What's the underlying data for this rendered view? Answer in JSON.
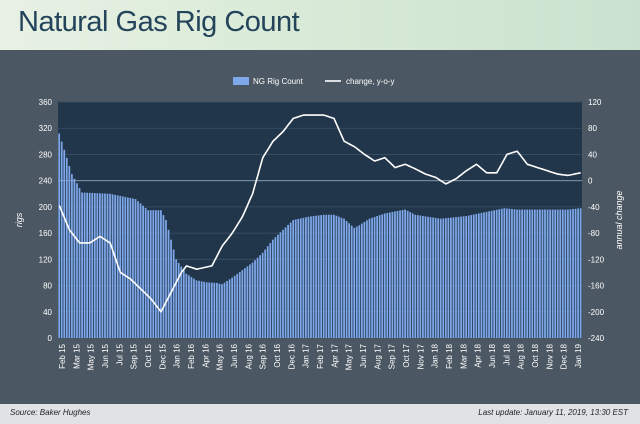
{
  "header": {
    "title": "Natural Gas Rig Count"
  },
  "footer": {
    "source": "Source: Baker Hughes",
    "last_update": "Last update: January 11, 2019, 13:30 EST"
  },
  "colors": {
    "bar": "#7fa8ea",
    "line": "#ffffff",
    "plot_bg": "#22364b",
    "panel_bg": "#4b5762"
  },
  "chart_data": {
    "type": "bar",
    "title": "",
    "left_axis_label": "rigs",
    "right_axis_label": "annual change",
    "ylim_left": [
      0,
      360
    ],
    "ylim_right": [
      -240,
      120
    ],
    "yticks_left": [
      "0",
      "40",
      "80",
      "120",
      "160",
      "200",
      "240",
      "280",
      "320",
      "360"
    ],
    "yticks_right": [
      "-240",
      "-200",
      "-160",
      "-120",
      "-80",
      "-40",
      "0",
      "40",
      "80",
      "120"
    ],
    "x_tick_labels": [
      "Feb 15",
      "Mar 15",
      "May 15",
      "Jun 15",
      "Jul 15",
      "Sep 15",
      "Oct 15",
      "Dec 15",
      "Jan 16",
      "Feb 16",
      "Apr 16",
      "May 16",
      "Jun 16",
      "Aug 16",
      "Sep 16",
      "Oct 16",
      "Dec 16",
      "Jan 17",
      "Feb 17",
      "Apr 17",
      "May 17",
      "Jun 17",
      "Aug 17",
      "Sep 17",
      "Oct 17",
      "Nov 17",
      "Jan 18",
      "Feb 18",
      "Mar 18",
      "Apr 18",
      "Jun 18",
      "Jul 18",
      "Aug 18",
      "Oct 18",
      "Nov 18",
      "Dec 18",
      "Jan 19"
    ],
    "legend": {
      "position": "top-center",
      "entries": [
        {
          "name": "NG Rig Count",
          "type": "bar"
        },
        {
          "name": "change, y-o-y",
          "type": "line"
        }
      ]
    },
    "grid": {
      "horizontal": true
    },
    "series": [
      {
        "name": "NG Rig Count",
        "axis": "left",
        "type": "bar",
        "anchors_index": [
          0,
          5,
          9,
          20,
          30,
          35,
          40,
          42,
          46,
          50,
          54,
          58,
          62,
          64,
          68,
          76,
          80,
          84,
          88,
          92,
          98,
          104,
          108,
          112,
          116,
          118,
          122,
          128,
          136,
          140,
          150,
          160,
          170,
          175,
          180,
          185,
          190,
          200,
          205
        ],
        "anchors_value": [
          312,
          250,
          222,
          220,
          212,
          195,
          195,
          180,
          120,
          98,
          88,
          85,
          84,
          82,
          92,
          115,
          130,
          150,
          165,
          180,
          185,
          188,
          188,
          182,
          168,
          172,
          182,
          190,
          196,
          188,
          182,
          186,
          194,
          198,
          196,
          196,
          196,
          196,
          198
        ]
      },
      {
        "name": "change, y-o-y",
        "axis": "right",
        "type": "line",
        "anchors_index": [
          0,
          4,
          8,
          12,
          16,
          20,
          24,
          28,
          32,
          36,
          40,
          44,
          48,
          50,
          54,
          60,
          64,
          68,
          72,
          76,
          80,
          84,
          88,
          92,
          96,
          100,
          104,
          108,
          112,
          116,
          120,
          124,
          128,
          132,
          136,
          140,
          144,
          148,
          152,
          156,
          160,
          164,
          168,
          172,
          176,
          180,
          184,
          188,
          192,
          196,
          200,
          205
        ],
        "anchors_value": [
          -38,
          -75,
          -95,
          -95,
          -85,
          -95,
          -140,
          -150,
          -165,
          -180,
          -200,
          -170,
          -140,
          -130,
          -135,
          -130,
          -100,
          -80,
          -55,
          -20,
          35,
          60,
          75,
          95,
          100,
          100,
          100,
          95,
          60,
          52,
          40,
          30,
          35,
          20,
          25,
          18,
          10,
          5,
          -5,
          3,
          15,
          25,
          12,
          12,
          40,
          45,
          25,
          20,
          15,
          10,
          8,
          12
        ]
      }
    ],
    "n_bars": 206
  }
}
